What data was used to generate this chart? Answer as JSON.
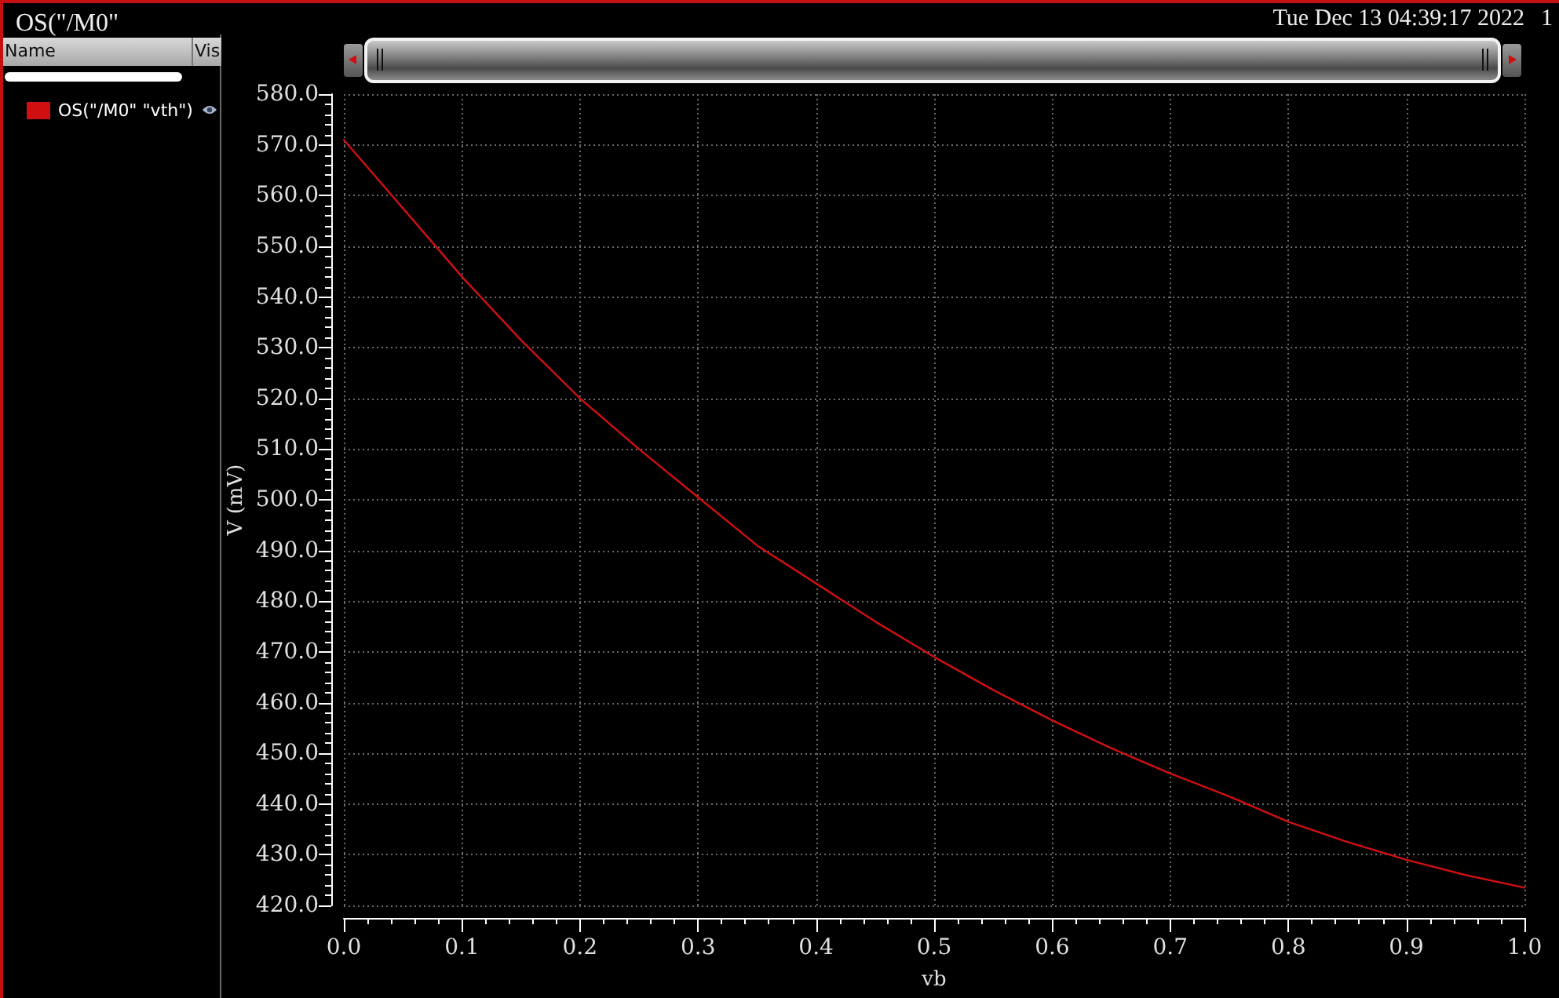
{
  "chart_data": {
    "type": "line",
    "title": "OS(\"/M0\"",
    "xlabel": "vb",
    "ylabel": "V (mV)",
    "annotations": [
      "Tue Dec 13 04:39:17 2022",
      "1",
      "Name",
      "Vis"
    ],
    "x": [
      0,
      0.05,
      0.1,
      0.15,
      0.2,
      0.25,
      0.3,
      0.35,
      0.4,
      0.45,
      0.5,
      0.55,
      0.6,
      0.65,
      0.7,
      0.75,
      0.8,
      0.85,
      0.9,
      0.95,
      1
    ],
    "series": [
      {
        "name": "OS(\"/M0\" \"vth\")",
        "color": "#d01010",
        "values": [
          571,
          557.5,
          544,
          531.5,
          520,
          510,
          500.5,
          491,
          483.5,
          476,
          469,
          462.5,
          456.5,
          451,
          446,
          441.5,
          436.5,
          432.5,
          429,
          426,
          423.5
        ]
      }
    ],
    "xlim": [
      0,
      1
    ],
    "xticks": [
      {
        "value": 0,
        "label": "0.0"
      },
      {
        "value": 0.1,
        "label": "0.1"
      },
      {
        "value": 0.2,
        "label": "0.2"
      },
      {
        "value": 0.3,
        "label": "0.3"
      },
      {
        "value": 0.4,
        "label": "0.4"
      },
      {
        "value": 0.5,
        "label": "0.5"
      },
      {
        "value": 0.6,
        "label": "0.6"
      },
      {
        "value": 0.7,
        "label": "0.7"
      },
      {
        "value": 0.8,
        "label": "0.8"
      },
      {
        "value": 0.9,
        "label": "0.9"
      },
      {
        "value": 1,
        "label": "1.0"
      }
    ],
    "ylim": [
      420,
      580
    ],
    "yticks": [
      {
        "value": 420,
        "label": "420.0"
      },
      {
        "value": 430,
        "label": "430.0"
      },
      {
        "value": 440,
        "label": "440.0"
      },
      {
        "value": 450,
        "label": "450.0"
      },
      {
        "value": 460,
        "label": "460.0"
      },
      {
        "value": 470,
        "label": "470.0"
      },
      {
        "value": 480,
        "label": "480.0"
      },
      {
        "value": 490,
        "label": "490.0"
      },
      {
        "value": 500,
        "label": "500.0"
      },
      {
        "value": 510,
        "label": "510.0"
      },
      {
        "value": 520,
        "label": "520.0"
      },
      {
        "value": 530,
        "label": "530.0"
      },
      {
        "value": 540,
        "label": "540.0"
      },
      {
        "value": 550,
        "label": "550.0"
      },
      {
        "value": 560,
        "label": "560.0"
      },
      {
        "value": 570,
        "label": "570.0"
      },
      {
        "value": 580,
        "label": "580.0"
      }
    ],
    "grid": true,
    "legend": "left",
    "line_style": "solid"
  }
}
